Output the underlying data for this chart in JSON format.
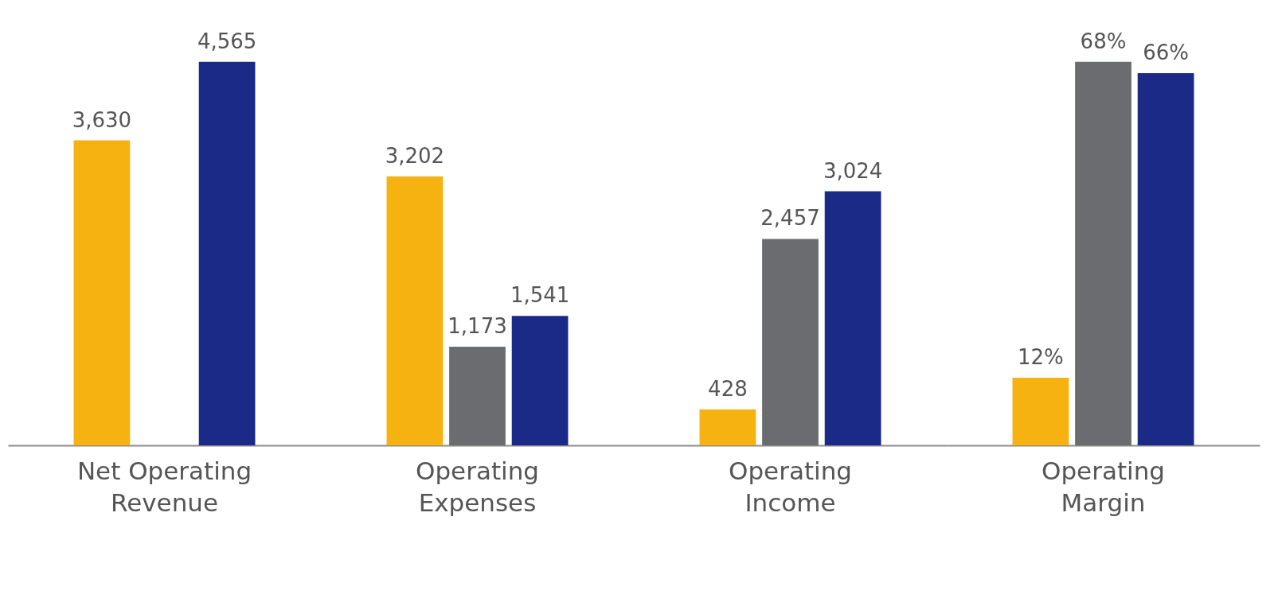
{
  "chart_data": [
    {
      "type": "bar",
      "categories": [
        "Net Operating Revenue",
        "Operating Expenses",
        "Operating Income"
      ],
      "series": [
        {
          "color": "#f5b210",
          "values": [
            3630,
            3202,
            428
          ],
          "value_labels": [
            "3,630",
            "3,202",
            "428"
          ]
        },
        {
          "color": "#6a6c6f",
          "values": [
            null,
            1173,
            2457
          ],
          "value_labels": [
            null,
            "1,173",
            "2,457"
          ]
        },
        {
          "color": "#1a2a86",
          "values": [
            4565,
            1541,
            3024
          ],
          "value_labels": [
            "4,565",
            "1,541",
            "3,024"
          ]
        }
      ],
      "grid": false
    },
    {
      "type": "bar",
      "categories": [
        "Operating Margin"
      ],
      "series": [
        {
          "color": "#f5b210",
          "values": [
            12
          ],
          "value_labels": [
            "12%"
          ]
        },
        {
          "color": "#6a6c6f",
          "values": [
            68
          ],
          "value_labels": [
            "68%"
          ]
        },
        {
          "color": "#1a2a86",
          "values": [
            66
          ],
          "value_labels": [
            "66%"
          ]
        }
      ],
      "grid": false
    }
  ]
}
